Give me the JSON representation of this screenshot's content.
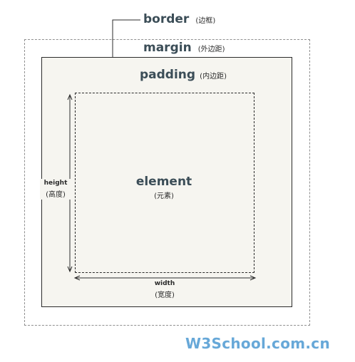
{
  "diagram": {
    "border_label": "border",
    "border_label_cn": "(边框)",
    "margin_label": "margin",
    "margin_label_cn": "(外边距)",
    "padding_label": "padding",
    "padding_label_cn": "(内边距)",
    "element_label": "element",
    "element_label_cn": "(元素)",
    "height_label": "height",
    "height_label_cn": "(高度)",
    "width_label": "width",
    "width_label_cn": "(宽度)"
  },
  "brand": {
    "text": "W3School.com.cn",
    "color": "#67a8d8"
  },
  "colors": {
    "heading": "#3b4d57",
    "border_fill": "#f6f5f0",
    "outline": "#2b2b2b",
    "margin_outline": "#8f8f8f"
  }
}
